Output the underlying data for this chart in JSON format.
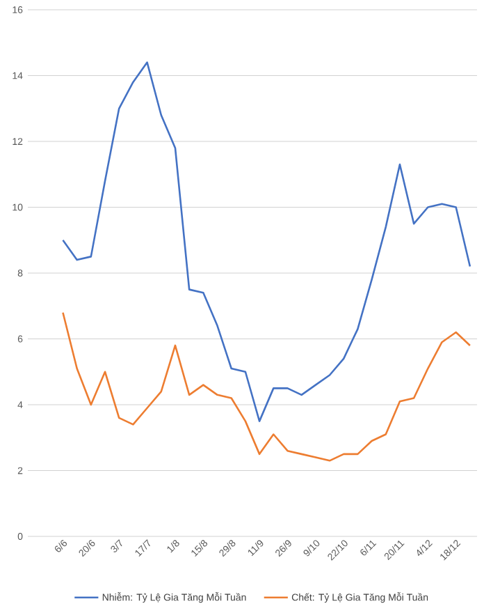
{
  "chart_data": {
    "type": "line",
    "categories": [
      "6/6",
      null,
      "20/6",
      null,
      "3/7",
      null,
      "17/7",
      null,
      "1/8",
      null,
      "15/8",
      null,
      "29/8",
      null,
      "11/9",
      null,
      "26/9",
      null,
      "9/10",
      null,
      "22/10",
      null,
      "6/11",
      null,
      "20/11",
      null,
      "4/12",
      null,
      "18/12",
      null
    ],
    "series": [
      {
        "name": "Nhiễm: Tỷ Lệ Gia Tăng Mỗi Tuần",
        "color": "#4472c4",
        "values": [
          9.0,
          8.4,
          8.5,
          10.8,
          13.0,
          13.8,
          14.4,
          12.8,
          11.8,
          7.5,
          7.4,
          6.4,
          5.1,
          5.0,
          3.5,
          4.5,
          4.5,
          4.3,
          4.6,
          4.9,
          5.4,
          6.3,
          7.8,
          9.4,
          11.3,
          9.5,
          10.0,
          10.1,
          10.0,
          8.2
        ]
      },
      {
        "name": "Chết: Tỷ Lệ Gia Tăng Mỗi Tuần",
        "color": "#ed7d31",
        "values": [
          6.8,
          5.1,
          4.0,
          5.0,
          3.6,
          3.4,
          3.9,
          4.4,
          5.8,
          4.3,
          4.6,
          4.3,
          4.2,
          3.5,
          2.5,
          3.1,
          2.6,
          2.5,
          2.4,
          2.3,
          2.5,
          2.5,
          2.9,
          3.1,
          4.1,
          4.2,
          5.1,
          5.9,
          6.2,
          5.8
        ]
      }
    ],
    "ylim": [
      0,
      16
    ],
    "yticks": [
      0,
      2,
      4,
      6,
      8,
      10,
      12,
      14,
      16
    ],
    "grid": "y",
    "legend": "bottom",
    "marker": "none",
    "line_style": "solid"
  }
}
